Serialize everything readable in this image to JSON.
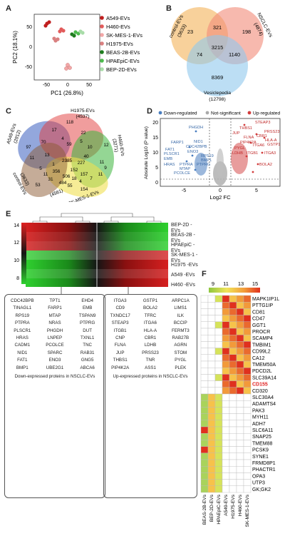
{
  "panels": [
    "A",
    "B",
    "C",
    "D",
    "E",
    "F"
  ],
  "pca": {
    "xlabel": "PC1 (26.8%)",
    "ylabel": "PC2 (18.1%)",
    "xticks": [
      "-50",
      "0",
      "50"
    ],
    "yticks": [
      "50",
      "0",
      "-50"
    ],
    "legend": [
      {
        "label": "A549-EVs",
        "color": "#c01e1e"
      },
      {
        "label": "H460-EVs",
        "color": "#e25b5b"
      },
      {
        "label": "SK-MES-1-EVs",
        "color": "#f2a7a7"
      },
      {
        "label": "H1975-EVs",
        "color": "#d98080"
      },
      {
        "label": "BEAS-2B-EVs",
        "color": "#1e7d1e"
      },
      {
        "label": "HPAEpiC-EVs",
        "color": "#4dbb4d"
      },
      {
        "label": "BEP-2D-EVs",
        "color": "#a8dca8"
      }
    ]
  },
  "venn3": {
    "sets": [
      {
        "name": "control-EVs",
        "count": "(3633)",
        "color": "#f6c27a"
      },
      {
        "name": "NSCLC-EVs",
        "count": "(4874)",
        "color": "#f28b78"
      },
      {
        "name": "Vesiclepedia",
        "count": "(12798)",
        "color": "#8fc8ec"
      }
    ],
    "regions": [
      "23",
      "321",
      "198",
      "3215",
      "74",
      "1140",
      "8369"
    ]
  },
  "venn5": {
    "sets": [
      {
        "name": "A549-EVs",
        "count": "(2912)",
        "color": "#3a5fc0"
      },
      {
        "name": "H1975-EVs",
        "count": "(4537)",
        "color": "#e23b3b"
      },
      {
        "name": "H460-EVs",
        "count": "(3271)",
        "color": "#3cb43c"
      },
      {
        "name": "SK-MES-1-EVs",
        "count": "(4561)",
        "color": "#f0e050"
      },
      {
        "name": "control-EVs",
        "count": "(3633)",
        "color": "#8c5a32"
      }
    ],
    "regions": [
      "118",
      "17",
      "22",
      "12",
      "97",
      "70",
      "4",
      "59",
      "5",
      "10",
      "11",
      "13",
      "40",
      "2385",
      "227",
      "11",
      "1",
      "9",
      "356",
      "152",
      "11",
      "157",
      "7",
      "5",
      "11",
      "31",
      "53",
      "506",
      "18",
      "4",
      "484",
      "55",
      "154"
    ]
  },
  "volcano": {
    "legend": [
      "Down-regulated",
      "Not-significant",
      "Up-regulated"
    ],
    "legend_colors": [
      "#4a7ec0",
      "#aaaaaa",
      "#d23c3c"
    ],
    "xlabel": "Log2 FC",
    "ylabel": "Absolute Log10 (P value)",
    "xticks": [
      "-5",
      "0",
      "5"
    ],
    "yticks": [
      "0",
      "5",
      "10",
      "15",
      "20"
    ],
    "down_labels": [
      "PHGDH",
      "FARP1",
      "NID1",
      "FAT1",
      "CDC42BPB",
      "ENO3",
      "PLSCR1",
      "RPS19",
      "EMB",
      "BMP1",
      "HRAS",
      "PTPRA",
      "MTAP",
      "PTPRG",
      "PCOLCE"
    ],
    "up_labels": [
      "STEAP3",
      "THBS1",
      "PRSS23",
      "JUP",
      "CBR1",
      "FLNA",
      "HLA-A",
      "PIP4K2A",
      "ITGA6",
      "GSTP1",
      "PYGL",
      "LDHB",
      "ITGB1",
      "ITGA3",
      "BOLA2"
    ]
  },
  "heatmap_e": {
    "scale": [
      "14",
      "12",
      "10",
      "8"
    ],
    "rows": [
      "BEP-2D -EVs",
      "BEAS-2B -EVs",
      "HPAEpiC -EVs",
      "SK-MES-1 -EVs",
      "H1975 -EVs",
      "A549 -EVs",
      "H460 -EVs"
    ],
    "down_table": [
      "CDC42BPB",
      "TPT1",
      "EHD4",
      "TINAGL1",
      "FARP1",
      "EMB",
      "RPS19",
      "MTAP",
      "TSPAN9",
      "PTPRA",
      "NRAS",
      "PTPRG",
      "PLSCR1",
      "PHGDH",
      "DUT",
      "HRAS",
      "LNPEP",
      "TXNL1",
      "CADM1",
      "PCOLCE",
      "TNC",
      "NID1",
      "SPARC",
      "RAB31",
      "FAT1",
      "ENO3",
      "GNG5",
      "BMP1",
      "UBE2G1",
      "ABCA6"
    ],
    "down_caption": "Down-expressed proteins in NSCLC-EVs",
    "up_table": [
      "ITGA3",
      "GSTP1",
      "ARPC1A",
      "CD9",
      "BOLA2",
      "LIMS1",
      "TXNDC17",
      "TFRC",
      "ILK",
      "STEAP3",
      "ITGA6",
      "BCCIP",
      "ITGB1",
      "HLA-A",
      "FERMT3",
      "CNP",
      "CBR1",
      "RAB27B",
      "FLNA",
      "LDHB",
      "AGRN",
      "JUP",
      "PRSS23",
      "STOM",
      "THBS1",
      "TNR",
      "PYGL",
      "PIP4K2A",
      "ASS1",
      "PLEK"
    ],
    "up_caption": "Up-expressed proteins in NSCLC-EVs"
  },
  "heatmap_f": {
    "scale": [
      "9",
      "11",
      "13",
      "15"
    ],
    "columns": [
      "BEAS-2B-EVs",
      "BEP-2D-EVs",
      "HPAEpiC-EVs",
      "A549-EVs",
      "H1975-EVs",
      "H460-EVs",
      "SK-MES-1-EVs"
    ],
    "genes": [
      "MAPK1IP1L",
      "PTTG1IP",
      "CD81",
      "CD47",
      "GGT1",
      "PROCR",
      "SCAMP4",
      "TMBIM1",
      "CD99L2",
      "CA12",
      "TMEM50A",
      "PDCD2L",
      "SLC39A14",
      "CD155",
      "CD320",
      "SLC30A4",
      "ADAMTS4",
      "PAK3",
      "MYH11",
      "ADH7",
      "SLC6A11",
      "SNAP25",
      "TMEM88",
      "PCSK9",
      "SYNE1",
      "FRMD8P1",
      "PHACTR1",
      "OPA3",
      "UTP3",
      "GK;GK2"
    ],
    "highlight": "CD155",
    "highlight_color": "#e02020"
  }
}
